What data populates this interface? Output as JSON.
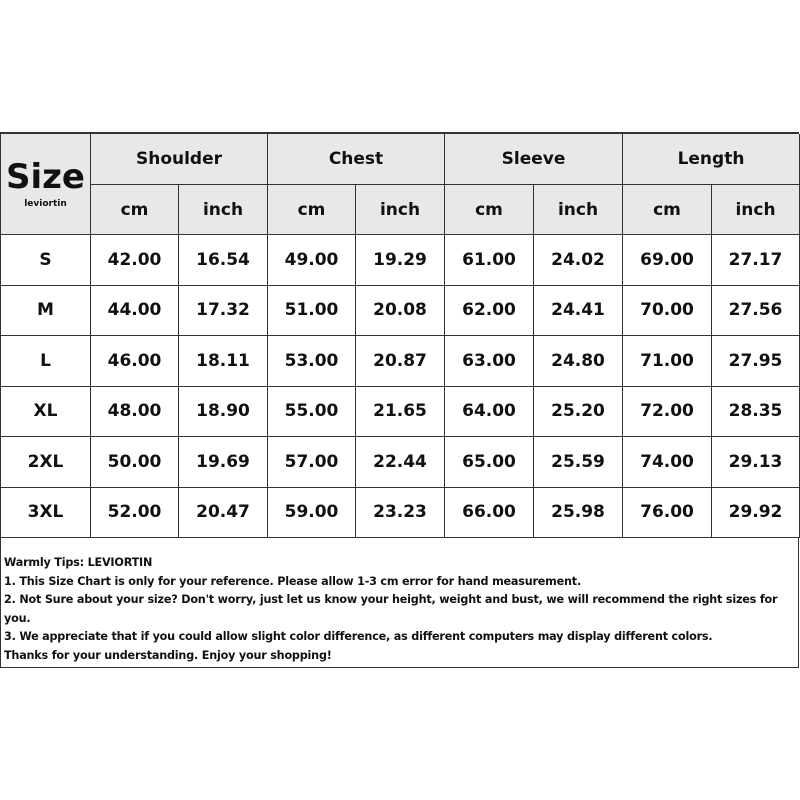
{
  "header": {
    "size_label": "Size",
    "brand": "leviortin",
    "groups": [
      "Shoulder",
      "Chest",
      "Sleeve",
      "Length"
    ],
    "units": [
      "cm",
      "inch"
    ]
  },
  "rows": [
    {
      "size": "S",
      "values": [
        "42.00",
        "16.54",
        "49.00",
        "19.29",
        "61.00",
        "24.02",
        "69.00",
        "27.17"
      ]
    },
    {
      "size": "M",
      "values": [
        "44.00",
        "17.32",
        "51.00",
        "20.08",
        "62.00",
        "24.41",
        "70.00",
        "27.56"
      ]
    },
    {
      "size": "L",
      "values": [
        "46.00",
        "18.11",
        "53.00",
        "20.87",
        "63.00",
        "24.80",
        "71.00",
        "27.95"
      ]
    },
    {
      "size": "XL",
      "values": [
        "48.00",
        "18.90",
        "55.00",
        "21.65",
        "64.00",
        "25.20",
        "72.00",
        "28.35"
      ]
    },
    {
      "size": "2XL",
      "values": [
        "50.00",
        "19.69",
        "57.00",
        "22.44",
        "65.00",
        "25.59",
        "74.00",
        "29.13"
      ]
    },
    {
      "size": "3XL",
      "values": [
        "52.00",
        "20.47",
        "59.00",
        "23.23",
        "66.00",
        "25.98",
        "76.00",
        "29.92"
      ]
    }
  ],
  "tips": [
    "Warmly Tips: LEVIORTIN",
    "1. This Size Chart is only for your reference. Please allow 1-3 cm error for hand measurement.",
    "2. Not Sure about your size? Don't worry, just let us know your height, weight and bust, we will recommend the right sizes for you.",
    "3. We appreciate that if you could allow slight color difference, as different computers may display different colors.",
    "Thanks for your understanding. Enjoy your shopping!"
  ]
}
